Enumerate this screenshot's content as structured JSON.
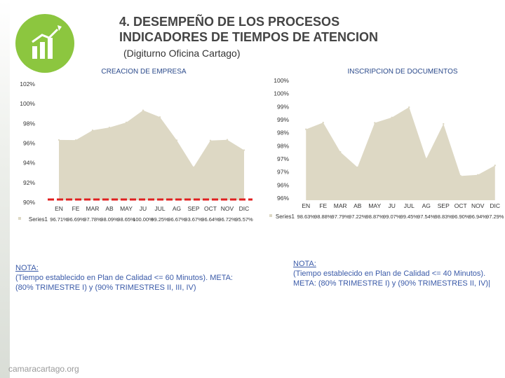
{
  "header": {
    "title_line1": "4. DESEMPEÑO DE LOS PROCESOS",
    "title_line2": "INDICADORES DE TIEMPOS DE ATENCION",
    "subtitle": "(Digiturno Oficina Cartago)"
  },
  "colors": {
    "area": "#ddd8c4",
    "line": "#ffffff",
    "target": "#e02020",
    "title_text": "#444444",
    "chart_title": "#2b4a8b",
    "note_text": "#3a5aa8",
    "logo": "#8cc63f"
  },
  "chart_data": [
    {
      "type": "area",
      "title": "CREACION DE EMPRESA",
      "categories": [
        "EN",
        "FE",
        "MAR",
        "AB",
        "MAY",
        "JU",
        "JUL",
        "AG",
        "SEP",
        "OCT",
        "NOV",
        "DIC"
      ],
      "series": [
        {
          "name": "Series1",
          "values": [
            96.71,
            96.69,
            97.78,
            98.09,
            98.65,
            100.0,
            99.25,
            96.67,
            93.67,
            96.64,
            96.72,
            95.57
          ]
        }
      ],
      "value_labels": [
        "96.71%",
        "96.69%",
        "97.78%",
        "98.09%",
        "98.65%",
        "100.00%",
        "99.25%",
        "96.67%",
        "93.67%",
        "96.64%",
        "96.72%",
        "95.57%"
      ],
      "y_ticks": [
        "102%",
        "100%",
        "98%",
        "96%",
        "94%",
        "92%",
        "90%"
      ],
      "ylim": [
        90,
        102
      ],
      "target_value": 90,
      "legend": "Series1"
    },
    {
      "type": "area",
      "title": "INSCRIPCION DE DOCUMENTOS",
      "categories": [
        "EN",
        "FE",
        "MAR",
        "AB",
        "MAY",
        "JU",
        "JUL",
        "AG",
        "SEP",
        "OCT",
        "NOV",
        "DIC"
      ],
      "series": [
        {
          "name": "Series1",
          "values": [
            98.63,
            98.88,
            97.79,
            97.22,
            98.87,
            99.07,
            99.45,
            97.54,
            98.83,
            96.9,
            96.94,
            97.29
          ]
        }
      ],
      "value_labels": [
        "98.63%",
        "98.88%",
        "97.79%",
        "97.22%",
        "98.87%",
        "99.07%",
        "99.45%",
        "97.54%",
        "98.83%",
        "96.90%",
        "96.94%",
        "97.29%"
      ],
      "y_ticks": [
        "100%",
        "100%",
        "99%",
        "99%",
        "98%",
        "98%",
        "97%",
        "97%",
        "96%",
        "96%"
      ],
      "ylim": [
        96,
        100
      ],
      "legend": "Series1"
    }
  ],
  "notes": [
    {
      "heading": "NOTA:",
      "body": "(Tiempo establecido en Plan de Calidad <= 60 Minutos). META: (80% TRIMESTRE I) y (90% TRIMESTRES II, III, IV)"
    },
    {
      "heading": "NOTA:",
      "body": "(Tiempo establecido en Plan de Calidad <= 40 Minutos). META: (80% TRIMESTRE I) y (90% TRIMESTRES II, IV)|"
    }
  ],
  "footer": {
    "site": "camaracartago.org"
  },
  "logo_icon": "growth-chart-icon"
}
